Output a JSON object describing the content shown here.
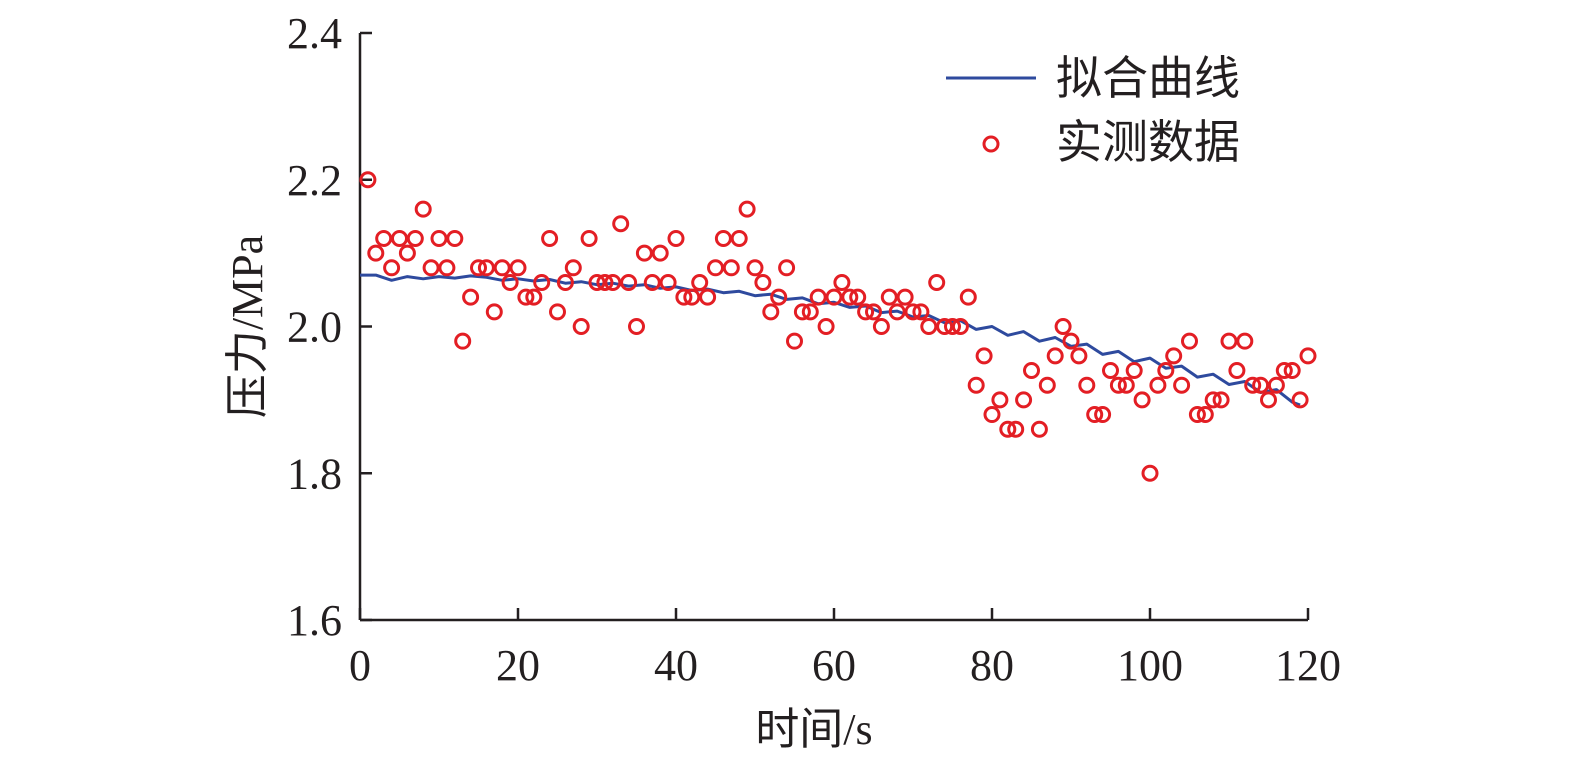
{
  "chart_data": {
    "type": "scatter",
    "xlabel": "时间/s",
    "ylabel": "压力/MPa",
    "xlim": [
      0,
      120
    ],
    "ylim": [
      1.6,
      2.4
    ],
    "xticks": [
      "0",
      "20",
      "40",
      "60",
      "80",
      "100",
      "120"
    ],
    "yticks": [
      "1.6",
      "1.8",
      "2.0",
      "2.2",
      "2.4"
    ],
    "grid": false,
    "legend_position": "top-right",
    "series": [
      {
        "name": "拟合曲线",
        "kind": "line",
        "color": "#2e4a9e",
        "x": [
          0,
          2,
          4,
          6,
          8,
          10,
          12,
          14,
          16,
          18,
          20,
          22,
          24,
          26,
          28,
          30,
          32,
          34,
          36,
          38,
          40,
          42,
          44,
          46,
          48,
          50,
          52,
          54,
          56,
          58,
          60,
          62,
          64,
          66,
          68,
          70,
          72,
          74,
          76,
          78,
          80,
          82,
          84,
          86,
          88,
          90,
          92,
          94,
          96,
          98,
          100,
          102,
          104,
          106,
          108,
          110,
          112,
          114,
          116,
          118,
          119
        ],
        "y": [
          2.07,
          2.07,
          2.063,
          2.068,
          2.065,
          2.068,
          2.066,
          2.069,
          2.067,
          2.063,
          2.065,
          2.062,
          2.064,
          2.059,
          2.061,
          2.057,
          2.059,
          2.055,
          2.057,
          2.052,
          2.054,
          2.049,
          2.051,
          2.046,
          2.048,
          2.042,
          2.044,
          2.037,
          2.039,
          2.031,
          2.033,
          2.026,
          2.028,
          2.019,
          2.021,
          2.013,
          2.015,
          2.005,
          2.008,
          1.996,
          2.0,
          1.988,
          1.993,
          1.98,
          1.985,
          1.973,
          1.976,
          1.962,
          1.966,
          1.952,
          1.957,
          1.943,
          1.946,
          1.931,
          1.935,
          1.921,
          1.925,
          1.91,
          1.914,
          1.897,
          1.893
        ]
      },
      {
        "name": "实测数据",
        "kind": "scatter",
        "color": "#e31e24",
        "x": [
          1,
          2,
          3,
          4,
          5,
          6,
          7,
          8,
          9,
          10,
          11,
          12,
          13,
          14,
          15,
          16,
          17,
          18,
          19,
          20,
          21,
          22,
          23,
          24,
          25,
          26,
          27,
          28,
          29,
          30,
          31,
          32,
          33,
          34,
          35,
          36,
          37,
          38,
          39,
          40,
          41,
          42,
          43,
          44,
          45,
          46,
          47,
          48,
          49,
          50,
          51,
          52,
          53,
          54,
          55,
          56,
          57,
          58,
          59,
          60,
          61,
          62,
          63,
          64,
          65,
          66,
          67,
          68,
          69,
          70,
          71,
          72,
          73,
          74,
          75,
          76,
          77,
          78,
          79,
          80,
          81,
          82,
          83,
          84,
          85,
          86,
          87,
          88,
          89,
          90,
          91,
          92,
          93,
          94,
          95,
          96,
          97,
          98,
          99,
          100,
          101,
          102,
          103,
          104,
          105,
          106,
          107,
          108,
          109,
          110,
          111,
          112,
          113,
          114,
          115,
          116,
          117,
          118,
          119,
          120
        ],
        "y": [
          2.2,
          2.1,
          2.12,
          2.08,
          2.12,
          2.1,
          2.12,
          2.16,
          2.08,
          2.12,
          2.08,
          2.12,
          1.98,
          2.04,
          2.08,
          2.08,
          2.02,
          2.08,
          2.06,
          2.08,
          2.04,
          2.04,
          2.06,
          2.12,
          2.02,
          2.06,
          2.08,
          2.0,
          2.12,
          2.06,
          2.06,
          2.06,
          2.14,
          2.06,
          2.0,
          2.1,
          2.06,
          2.1,
          2.06,
          2.12,
          2.04,
          2.04,
          2.06,
          2.04,
          2.08,
          2.12,
          2.08,
          2.12,
          2.16,
          2.08,
          2.06,
          2.02,
          2.04,
          2.08,
          1.98,
          2.02,
          2.02,
          2.04,
          2.0,
          2.04,
          2.06,
          2.04,
          2.04,
          2.02,
          2.02,
          2.0,
          2.04,
          2.02,
          2.04,
          2.02,
          2.02,
          2.0,
          2.06,
          2.0,
          2.0,
          2.0,
          2.04,
          1.92,
          1.96,
          1.88,
          1.9,
          1.86,
          1.86,
          1.9,
          1.94,
          1.86,
          1.92,
          1.96,
          2.0,
          1.98,
          1.96,
          1.92,
          1.88,
          1.88,
          1.94,
          1.92,
          1.92,
          1.94,
          1.9,
          1.8,
          1.92,
          1.94,
          1.96,
          1.92,
          1.98,
          1.88,
          1.88,
          1.9,
          1.9,
          1.98,
          1.94,
          1.98,
          1.92,
          1.92,
          1.9,
          1.92,
          1.94,
          1.94,
          1.9,
          1.96
        ]
      }
    ]
  }
}
